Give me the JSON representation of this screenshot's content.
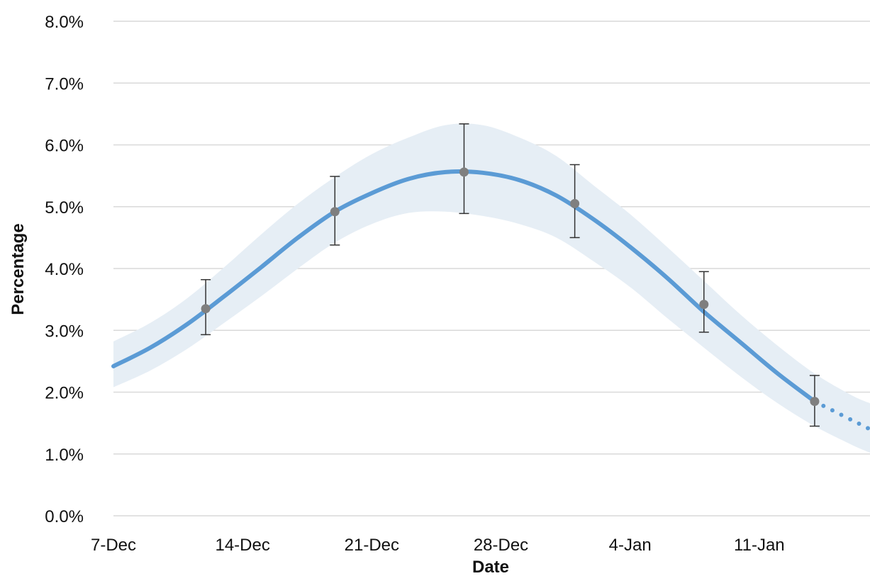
{
  "chart_data": {
    "type": "line",
    "title": "",
    "xlabel": "Date",
    "ylabel": "Percentage",
    "x_tick_labels": [
      {
        "date": "2020-12-07",
        "label": "7-Dec"
      },
      {
        "date": "2020-12-14",
        "label": "14-Dec"
      },
      {
        "date": "2020-12-21",
        "label": "21-Dec"
      },
      {
        "date": "2020-12-28",
        "label": "28-Dec"
      },
      {
        "date": "2021-01-04",
        "label": "4-Jan"
      },
      {
        "date": "2021-01-11",
        "label": "11-Jan"
      }
    ],
    "xlim": [
      "2020-12-07",
      "2021-01-17"
    ],
    "ylim": [
      0,
      8
    ],
    "y_ticks": [
      0,
      1,
      2,
      3,
      4,
      5,
      6,
      7,
      8
    ],
    "y_tick_format": "percent_1dp",
    "grid": "horizontal",
    "colors": {
      "line": "#5b9bd5",
      "band": "#e6eef5",
      "points": "#7f7f7f",
      "grid": "#d9d9d9"
    },
    "series": [
      {
        "style": "solid",
        "points": [
          {
            "x": "2020-12-07",
            "y": 2.42
          },
          {
            "x": "2020-12-09",
            "y": 2.72
          },
          {
            "x": "2020-12-11",
            "y": 3.1
          },
          {
            "x": "2020-12-13",
            "y": 3.55
          },
          {
            "x": "2020-12-15",
            "y": 4.02
          },
          {
            "x": "2020-12-17",
            "y": 4.5
          },
          {
            "x": "2020-12-19",
            "y": 4.92
          },
          {
            "x": "2020-12-21",
            "y": 5.22
          },
          {
            "x": "2020-12-23",
            "y": 5.45
          },
          {
            "x": "2020-12-25",
            "y": 5.56
          },
          {
            "x": "2020-12-27",
            "y": 5.55
          },
          {
            "x": "2020-12-29",
            "y": 5.43
          },
          {
            "x": "2020-12-31",
            "y": 5.18
          },
          {
            "x": "2021-01-02",
            "y": 4.8
          },
          {
            "x": "2021-01-04",
            "y": 4.35
          },
          {
            "x": "2021-01-06",
            "y": 3.85
          },
          {
            "x": "2021-01-08",
            "y": 3.3
          },
          {
            "x": "2021-01-10",
            "y": 2.8
          },
          {
            "x": "2021-01-12",
            "y": 2.3
          },
          {
            "x": "2021-01-14",
            "y": 1.85
          }
        ]
      },
      {
        "style": "dotted",
        "points": [
          {
            "x": "2021-01-14",
            "y": 1.85
          },
          {
            "x": "2021-01-16",
            "y": 1.55
          },
          {
            "x": "2021-01-17",
            "y": 1.4
          }
        ]
      }
    ],
    "confidence_band": [
      {
        "x": "2020-12-07",
        "low": 2.08,
        "high": 2.82
      },
      {
        "x": "2020-12-09",
        "low": 2.35,
        "high": 3.12
      },
      {
        "x": "2020-12-11",
        "low": 2.7,
        "high": 3.52
      },
      {
        "x": "2020-12-13",
        "low": 3.12,
        "high": 4.02
      },
      {
        "x": "2020-12-15",
        "low": 3.55,
        "high": 4.55
      },
      {
        "x": "2020-12-17",
        "low": 4.0,
        "high": 5.05
      },
      {
        "x": "2020-12-19",
        "low": 4.42,
        "high": 5.48
      },
      {
        "x": "2020-12-21",
        "low": 4.72,
        "high": 5.85
      },
      {
        "x": "2020-12-23",
        "low": 4.9,
        "high": 6.12
      },
      {
        "x": "2020-12-25",
        "low": 4.92,
        "high": 6.32
      },
      {
        "x": "2020-12-27",
        "low": 4.85,
        "high": 6.32
      },
      {
        "x": "2020-12-29",
        "low": 4.72,
        "high": 6.12
      },
      {
        "x": "2020-12-31",
        "low": 4.5,
        "high": 5.82
      },
      {
        "x": "2021-01-02",
        "low": 4.12,
        "high": 5.35
      },
      {
        "x": "2021-01-04",
        "low": 3.7,
        "high": 4.88
      },
      {
        "x": "2021-01-06",
        "low": 3.2,
        "high": 4.35
      },
      {
        "x": "2021-01-08",
        "low": 2.72,
        "high": 3.8
      },
      {
        "x": "2021-01-10",
        "low": 2.25,
        "high": 3.25
      },
      {
        "x": "2021-01-12",
        "low": 1.82,
        "high": 2.75
      },
      {
        "x": "2021-01-14",
        "low": 1.45,
        "high": 2.3
      },
      {
        "x": "2021-01-16",
        "low": 1.15,
        "high": 1.95
      },
      {
        "x": "2021-01-17",
        "low": 1.02,
        "high": 1.82
      }
    ],
    "observed": [
      {
        "x": "2020-12-12",
        "y": 3.35,
        "low": 2.93,
        "high": 3.82
      },
      {
        "x": "2020-12-19",
        "y": 4.92,
        "low": 4.38,
        "high": 5.49
      },
      {
        "x": "2020-12-26",
        "y": 5.56,
        "low": 4.89,
        "high": 6.34
      },
      {
        "x": "2021-01-01",
        "y": 5.05,
        "low": 4.5,
        "high": 5.68
      },
      {
        "x": "2021-01-08",
        "y": 3.42,
        "low": 2.97,
        "high": 3.95
      },
      {
        "x": "2021-01-14",
        "y": 1.85,
        "low": 1.45,
        "high": 2.27
      }
    ]
  }
}
